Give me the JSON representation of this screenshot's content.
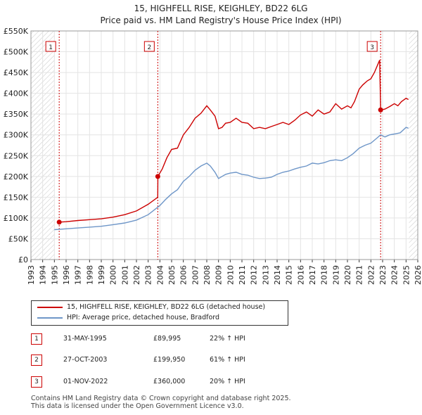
{
  "chart_data": {
    "type": "line",
    "title": "15, HIGHFELL RISE, KEIGHLEY, BD22 6LG",
    "subtitle": "Price paid vs. HM Land Registry's House Price Index (HPI)",
    "xlim": [
      1993,
      2026
    ],
    "ylim": [
      0,
      550000
    ],
    "x_ticks": [
      1993,
      1994,
      1995,
      1996,
      1997,
      1998,
      1999,
      2000,
      2001,
      2002,
      2003,
      2004,
      2005,
      2006,
      2007,
      2008,
      2009,
      2010,
      2011,
      2012,
      2013,
      2014,
      2015,
      2016,
      2017,
      2018,
      2019,
      2020,
      2021,
      2022,
      2023,
      2024,
      2025,
      2026
    ],
    "y_ticks": [
      {
        "value": 0,
        "label": "£0"
      },
      {
        "value": 50000,
        "label": "£50K"
      },
      {
        "value": 100000,
        "label": "£100K"
      },
      {
        "value": 150000,
        "label": "£150K"
      },
      {
        "value": 200000,
        "label": "£200K"
      },
      {
        "value": 250000,
        "label": "£250K"
      },
      {
        "value": 300000,
        "label": "£300K"
      },
      {
        "value": 350000,
        "label": "£350K"
      },
      {
        "value": 400000,
        "label": "£400K"
      },
      {
        "value": 450000,
        "label": "£450K"
      },
      {
        "value": 500000,
        "label": "£500K"
      },
      {
        "value": 550000,
        "label": "£550K"
      }
    ],
    "hatch_ranges": [
      [
        1993,
        1995.0
      ],
      [
        2025.25,
        2026
      ]
    ],
    "series": [
      {
        "name": "15, HIGHFELL RISE, KEIGHLEY, BD22 6LG (detached house)",
        "color": "#cc0000",
        "x": [
          1995.41,
          1996,
          1997,
          1998,
          1999,
          2000,
          2001,
          2002,
          2003,
          2003.82,
          2003.83,
          2004.2,
          2004.6,
          2005,
          2005.5,
          2006,
          2006.5,
          2007,
          2007.5,
          2008,
          2008.3,
          2008.7,
          2009,
          2009.3,
          2009.6,
          2010,
          2010.5,
          2011,
          2011.5,
          2012,
          2012.5,
          2013,
          2013.5,
          2014,
          2014.5,
          2015,
          2015.5,
          2016,
          2016.5,
          2017,
          2017.5,
          2018,
          2018.5,
          2019,
          2019.5,
          2020,
          2020.3,
          2020.6,
          2021,
          2021.3,
          2021.7,
          2022,
          2022.3,
          2022.6,
          2022.75,
          2022.83,
          2023.2,
          2023.6,
          2024,
          2024.3,
          2024.6,
          2025,
          2025.2
        ],
        "y": [
          89995,
          91000,
          94000,
          96000,
          98000,
          102000,
          108000,
          117000,
          133000,
          150000,
          199950,
          218000,
          245000,
          265000,
          268000,
          300000,
          318000,
          340000,
          352000,
          370000,
          360000,
          345000,
          315000,
          318000,
          328000,
          330000,
          340000,
          330000,
          328000,
          315000,
          318000,
          315000,
          320000,
          325000,
          330000,
          325000,
          335000,
          348000,
          355000,
          345000,
          360000,
          350000,
          355000,
          375000,
          362000,
          370000,
          365000,
          380000,
          410000,
          420000,
          430000,
          435000,
          450000,
          470000,
          480000,
          360000,
          362000,
          368000,
          375000,
          370000,
          380000,
          388000,
          385000
        ]
      },
      {
        "name": "HPI: Average price, detached house, Bradford",
        "color": "#6e96c8",
        "x": [
          1995,
          1996,
          1997,
          1998,
          1999,
          2000,
          2001,
          2002,
          2003,
          2004,
          2004.5,
          2005,
          2005.5,
          2006,
          2006.5,
          2007,
          2007.5,
          2008,
          2008.3,
          2008.7,
          2009,
          2009.3,
          2009.6,
          2010,
          2010.5,
          2011,
          2011.5,
          2012,
          2012.5,
          2013,
          2013.5,
          2014,
          2014.5,
          2015,
          2015.5,
          2016,
          2016.5,
          2017,
          2017.5,
          2018,
          2018.5,
          2019,
          2019.5,
          2020,
          2020.5,
          2021,
          2021.5,
          2022,
          2022.5,
          2022.83,
          2023.2,
          2023.6,
          2024,
          2024.5,
          2025,
          2025.2
        ],
        "y": [
          72000,
          74000,
          76000,
          78000,
          80000,
          84000,
          88000,
          95000,
          108000,
          130000,
          145000,
          158000,
          168000,
          188000,
          200000,
          215000,
          225000,
          232000,
          225000,
          210000,
          195000,
          200000,
          205000,
          208000,
          210000,
          205000,
          203000,
          198000,
          195000,
          196000,
          198000,
          205000,
          210000,
          213000,
          218000,
          222000,
          225000,
          232000,
          230000,
          233000,
          238000,
          240000,
          238000,
          245000,
          255000,
          268000,
          275000,
          280000,
          292000,
          300000,
          295000,
          300000,
          302000,
          305000,
          318000,
          316000
        ]
      }
    ],
    "sales": [
      {
        "num": "1",
        "x": 1995.41,
        "y": 89995,
        "date": "31-MAY-1995",
        "price": "£89,995",
        "hpi": "22% ↑ HPI"
      },
      {
        "num": "2",
        "x": 2003.82,
        "y": 199950,
        "date": "27-OCT-2003",
        "price": "£199,950",
        "hpi": "61% ↑ HPI"
      },
      {
        "num": "3",
        "x": 2022.83,
        "y": 360000,
        "date": "01-NOV-2022",
        "price": "£360,000",
        "hpi": "20% ↑ HPI"
      }
    ]
  },
  "legend": {
    "property": "15, HIGHFELL RISE, KEIGHLEY, BD22 6LG (detached house)",
    "hpi": "HPI: Average price, detached house, Bradford"
  },
  "footer": {
    "line1": "Contains HM Land Registry data © Crown copyright and database right 2025.",
    "line2": "This data is licensed under the Open Government Licence v3.0."
  }
}
